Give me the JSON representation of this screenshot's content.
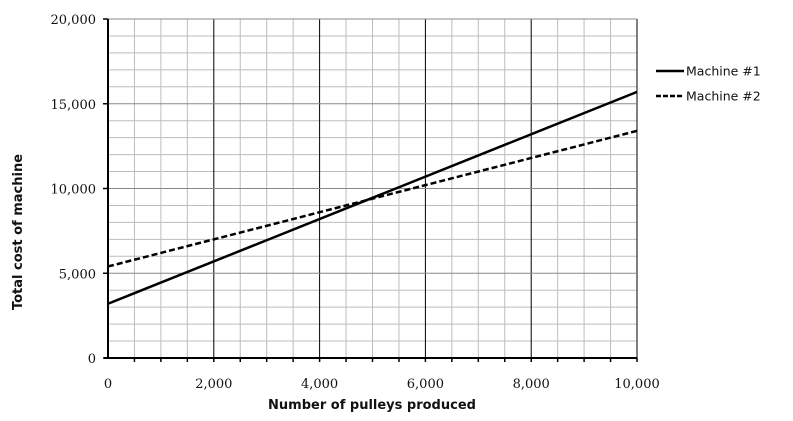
{
  "chart_data": {
    "type": "line",
    "title": "",
    "xlabel": "Number of pulleys produced",
    "ylabel": "Total cost of machine",
    "xlim": [
      0,
      10000
    ],
    "ylim": [
      0,
      20000
    ],
    "x_ticks": [
      0,
      2000,
      4000,
      6000,
      8000,
      10000
    ],
    "x_tick_labels": [
      "0",
      "2,000",
      "4,000",
      "6,000",
      "8,000",
      "10,000"
    ],
    "y_ticks": [
      0,
      5000,
      10000,
      15000,
      20000
    ],
    "y_tick_labels": [
      "0",
      "5,000",
      "10,000",
      "15,000",
      "20,000"
    ],
    "x_minor_step": 500,
    "y_minor_step": 1000,
    "grid": true,
    "legend_position": "right",
    "series": [
      {
        "name": "Machine #1",
        "style": "solid",
        "color": "#000000",
        "x": [
          0,
          10000
        ],
        "y": [
          3200,
          15700
        ]
      },
      {
        "name": "Machine #2",
        "style": "dashed",
        "color": "#000000",
        "x": [
          0,
          10000
        ],
        "y": [
          5400,
          13400
        ]
      }
    ]
  }
}
